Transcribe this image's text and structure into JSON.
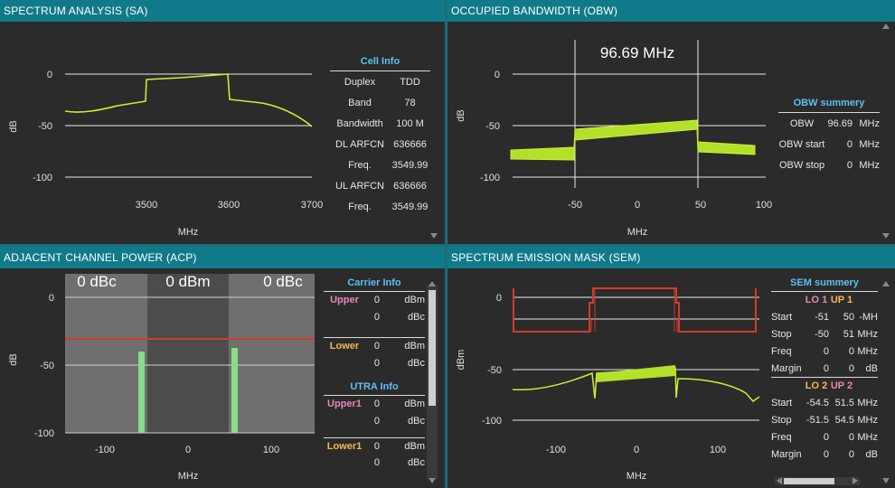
{
  "colors": {
    "header_bg": "#117a8a",
    "trace": "#ccee33",
    "mask": "#d43a2a",
    "acp_bar": "#88dd88",
    "table_head": "#5cc0f0",
    "upper_label": "#e985b7",
    "lower_label": "#f4b850"
  },
  "sa": {
    "title": "SPECTRUM ANALYSIS (SA)",
    "ylabel": "dB",
    "xlabel": "MHz",
    "yticks": [
      "0",
      "-50",
      "-100"
    ],
    "xticks": [
      "3500",
      "3600",
      "3700"
    ],
    "cell_info": {
      "title": "Cell Info",
      "rows": [
        {
          "label": "Duplex",
          "value": "TDD"
        },
        {
          "label": "Band",
          "value": "78"
        },
        {
          "label": "Bandwidth",
          "value": "100 M"
        },
        {
          "label": "DL ARFCN",
          "value": "636666"
        },
        {
          "label": "Freq.",
          "value": "3549.99"
        },
        {
          "label": "UL ARFCN",
          "value": "636666"
        },
        {
          "label": "Freq.",
          "value": "3549.99"
        }
      ]
    }
  },
  "obw": {
    "title": "OCCUPIED BANDWIDTH (OBW)",
    "readout": "96.69 MHz",
    "ylabel": "dB",
    "xlabel": "MHz",
    "yticks": [
      "0",
      "-50",
      "-100"
    ],
    "xticks": [
      "-50",
      "0",
      "50",
      "100"
    ],
    "summary": {
      "title": "OBW summery",
      "rows": [
        {
          "label": "OBW",
          "value": "96.69",
          "unit": "MHz"
        },
        {
          "label": "OBW start",
          "value": "0",
          "unit": "MHz"
        },
        {
          "label": "OBW stop",
          "value": "0",
          "unit": "MHz"
        }
      ]
    }
  },
  "acp": {
    "title": "ADJACENT CHANNEL POWER (ACP)",
    "left": "0 dBc",
    "center": "0 dBm",
    "right": "0 dBc",
    "ylabel": "dB",
    "xlabel": "MHz",
    "yticks": [
      "0",
      "-50",
      "-100"
    ],
    "xticks": [
      "-100",
      "0",
      "100"
    ],
    "carrier_info": {
      "title": "Carrier Info",
      "upper": {
        "label": "Upper",
        "v1": "0",
        "u1": "dBm",
        "v2": "0",
        "u2": "dBc"
      },
      "lower": {
        "label": "Lower",
        "v1": "0",
        "u1": "dBm",
        "v2": "0",
        "u2": "dBc"
      }
    },
    "utra_info": {
      "title": "UTRA Info",
      "upper1": {
        "label": "Upper1",
        "v1": "0",
        "u1": "dBm",
        "v2": "0",
        "u2": "dBc"
      },
      "lower1": {
        "label": "Lower1",
        "v1": "0",
        "u1": "dBm",
        "v2": "0",
        "u2": "dBc"
      }
    }
  },
  "sem": {
    "title": "SPECTRUM EMISSION MASK (SEM)",
    "ylabel": "dBm",
    "xlabel": "MHz",
    "yticks": [
      "0",
      "-50",
      "-100"
    ],
    "xticks": [
      "-100",
      "0",
      "100"
    ],
    "summary": {
      "title": "SEM summery",
      "lo1": "LO 1",
      "up1": "UP 1",
      "lo2": "LO 2",
      "up2": "UP 2",
      "rows1": [
        {
          "label": "Start",
          "a": "-51",
          "b": "50",
          "u": "-MH"
        },
        {
          "label": "Stop",
          "a": "-50",
          "b": "51",
          "u": "MHz"
        },
        {
          "label": "Freq",
          "a": "0",
          "b": "0",
          "u": "MHz"
        },
        {
          "label": "Margin",
          "a": "0",
          "b": "0",
          "u": "dB"
        }
      ],
      "rows2": [
        {
          "label": "Start",
          "a": "-54.5",
          "b": "51.5",
          "u": "MHz"
        },
        {
          "label": "Stop",
          "a": "-51.5",
          "b": "54.5",
          "u": "MHz"
        },
        {
          "label": "Freq",
          "a": "0",
          "b": "0",
          "u": "MHz"
        },
        {
          "label": "Margin",
          "a": "0",
          "b": "0",
          "u": "dB"
        }
      ]
    }
  }
}
